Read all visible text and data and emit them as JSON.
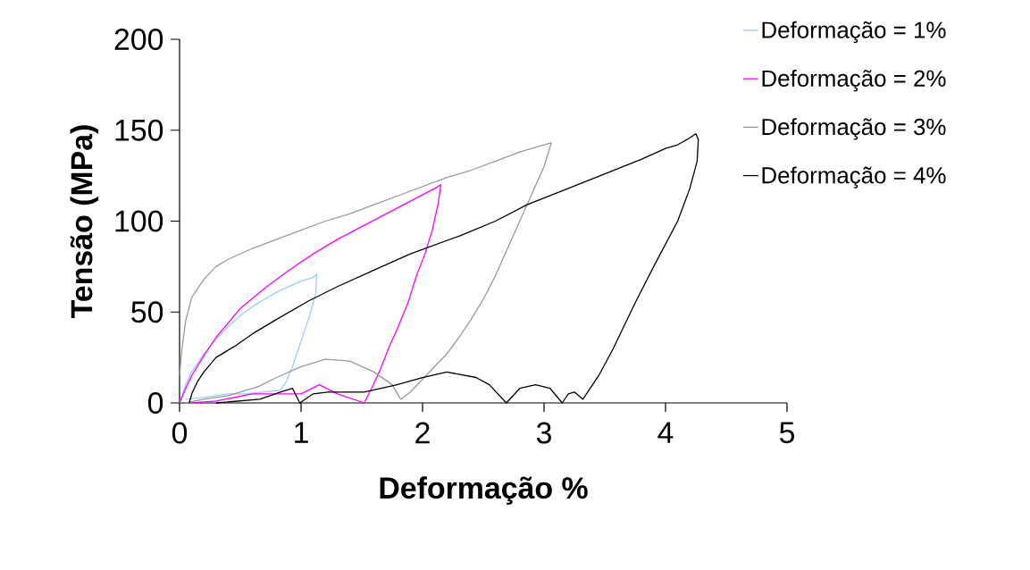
{
  "chart_data": {
    "type": "line",
    "xlabel": "Deformação %",
    "ylabel": "Tensão (MPa)",
    "xlim": [
      0,
      5
    ],
    "ylim": [
      0,
      200
    ],
    "xticks": [
      0,
      1,
      2,
      3,
      4,
      5
    ],
    "yticks": [
      0,
      50,
      100,
      150,
      200
    ],
    "grid": false,
    "legend": "right",
    "marker": "none",
    "line_style": "solid",
    "series": [
      {
        "name": "Deformação = 1%",
        "color": "#99ccff",
        "x": [
          0,
          0.05,
          0.1,
          0.2,
          0.3,
          0.4,
          0.5,
          0.6,
          0.7,
          0.8,
          0.9,
          1.0,
          1.1,
          1.13,
          1.12,
          1.08,
          1.03,
          0.98,
          0.93,
          0.88,
          0.83,
          0.55,
          0.4,
          0.2,
          0.05
        ],
        "values": [
          0,
          10,
          17,
          27,
          35,
          42,
          48,
          53,
          57,
          61,
          64,
          67,
          69,
          71,
          60,
          50,
          40,
          30,
          20,
          12,
          7,
          5,
          5,
          3,
          2
        ]
      },
      {
        "name": "Deformação = 2%",
        "color": "#ff00ff",
        "x": [
          0,
          0.05,
          0.1,
          0.2,
          0.3,
          0.5,
          0.7,
          0.9,
          1.1,
          1.3,
          1.5,
          1.7,
          1.9,
          2.1,
          2.15,
          2.13,
          2.08,
          2.02,
          1.95,
          1.88,
          1.8,
          1.72,
          1.65,
          1.58,
          1.52,
          1.3,
          1.15,
          1.0,
          0.6,
          0.3,
          0.1
        ],
        "values": [
          0,
          8,
          15,
          26,
          36,
          52,
          63,
          73,
          82,
          90,
          97,
          104,
          111,
          118,
          120,
          110,
          95,
          82,
          70,
          55,
          42,
          30,
          18,
          8,
          0,
          5,
          10,
          5,
          5,
          1,
          0
        ]
      },
      {
        "name": "Deformação = 3%",
        "color": "#999999",
        "x": [
          0,
          0.02,
          0.05,
          0.1,
          0.2,
          0.3,
          0.4,
          0.6,
          0.8,
          1.0,
          1.2,
          1.4,
          1.6,
          1.8,
          2.0,
          2.2,
          2.4,
          2.6,
          2.8,
          3.0,
          3.06,
          3.0,
          2.9,
          2.8,
          2.7,
          2.6,
          2.5,
          2.4,
          2.3,
          2.2,
          2.1,
          2.0,
          1.9,
          1.82,
          1.75,
          1.6,
          1.4,
          1.2,
          1.0,
          0.8,
          0.65,
          0.4,
          0.2,
          0.05
        ],
        "values": [
          15,
          30,
          45,
          58,
          68,
          75,
          79,
          85,
          90,
          95,
          100,
          104,
          109,
          114,
          119,
          124,
          128,
          133,
          138,
          142,
          143,
          130,
          115,
          100,
          85,
          70,
          57,
          46,
          36,
          27,
          20,
          13,
          6,
          2,
          10,
          17,
          23,
          24,
          20,
          14,
          9,
          4,
          2,
          0
        ]
      },
      {
        "name": "Deformação = 4%",
        "color": "#000000",
        "x": [
          0.08,
          0.1,
          0.15,
          0.2,
          0.3,
          0.45,
          0.6,
          0.8,
          1.06,
          1.3,
          1.6,
          1.9,
          2.31,
          2.6,
          2.86,
          3.2,
          3.5,
          3.8,
          4.0,
          4.1,
          4.18,
          4.25,
          4.27,
          4.26,
          4.2,
          4.1,
          3.91,
          3.75,
          3.57,
          3.45,
          3.32,
          3.25,
          3.2,
          3.15,
          3.05,
          2.93,
          2.8,
          2.69,
          2.55,
          2.44,
          2.2,
          2.0,
          1.79,
          1.52,
          1.22,
          1.1,
          0.99,
          0.93,
          0.83,
          0.66,
          0.3
        ],
        "values": [
          0,
          5,
          12,
          17,
          25,
          31,
          38,
          46,
          56,
          64,
          73,
          82,
          92,
          100,
          109,
          118,
          126,
          134,
          140,
          142,
          145,
          148,
          145,
          133,
          118,
          100,
          76,
          55,
          30,
          15,
          2,
          6,
          5,
          0,
          8,
          10,
          8,
          0,
          10,
          14,
          17,
          14,
          10,
          6,
          6,
          5,
          0,
          8,
          6,
          2,
          0
        ]
      }
    ]
  }
}
